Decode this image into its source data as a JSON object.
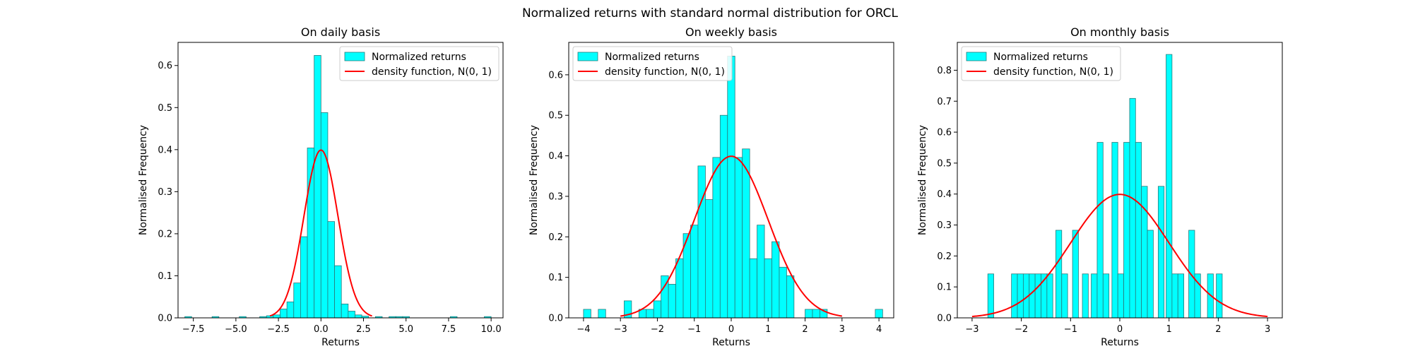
{
  "figure": {
    "suptitle": "Normalized returns with standard normal distribution for ORCL"
  },
  "colors": {
    "bar_fill": "#00ffff",
    "bar_edge": "#2a7a7a",
    "pdf_line": "#ff0000",
    "axis": "#000000",
    "background": "#ffffff"
  },
  "chart_data": [
    {
      "type": "bar",
      "title": "On daily basis",
      "xlabel": "Returns",
      "ylabel": "Normalised Frequency",
      "xlim": [
        -8.4,
        10.7
      ],
      "ylim": [
        0,
        0.655
      ],
      "xticks": [
        -7.5,
        -5.0,
        -2.5,
        0.0,
        2.5,
        5.0,
        7.5,
        10.0
      ],
      "xtick_labels": [
        "−7.5",
        "−5.0",
        "−2.5",
        "0.0",
        "2.5",
        "5.0",
        "7.5",
        "10.0"
      ],
      "yticks": [
        0.0,
        0.1,
        0.2,
        0.3,
        0.4,
        0.5,
        0.6
      ],
      "ytick_labels": [
        "0.0",
        "0.1",
        "0.2",
        "0.3",
        "0.4",
        "0.5",
        "0.6"
      ],
      "legend": {
        "placement": "upper-right",
        "entries": [
          "Normalized returns",
          "density function, N(0, 1)"
        ]
      },
      "grid": false,
      "series": [
        {
          "name": "Normalized returns",
          "kind": "histogram",
          "bins": [
            {
              "x0": -8.0,
              "x1": -7.6,
              "value": 0.003
            },
            {
              "x0": -6.4,
              "x1": -6.0,
              "value": 0.003
            },
            {
              "x0": -4.8,
              "x1": -4.4,
              "value": 0.003
            },
            {
              "x0": -3.6,
              "x1": -3.2,
              "value": 0.003
            },
            {
              "x0": -3.2,
              "x1": -2.8,
              "value": 0.005
            },
            {
              "x0": -2.8,
              "x1": -2.4,
              "value": 0.007
            },
            {
              "x0": -2.4,
              "x1": -2.0,
              "value": 0.021
            },
            {
              "x0": -2.0,
              "x1": -1.6,
              "value": 0.038
            },
            {
              "x0": -1.6,
              "x1": -1.2,
              "value": 0.083
            },
            {
              "x0": -1.2,
              "x1": -0.8,
              "value": 0.193
            },
            {
              "x0": -0.8,
              "x1": -0.4,
              "value": 0.404
            },
            {
              "x0": -0.4,
              "x1": 0.0,
              "value": 0.624
            },
            {
              "x0": 0.0,
              "x1": 0.4,
              "value": 0.488
            },
            {
              "x0": 0.4,
              "x1": 0.8,
              "value": 0.229
            },
            {
              "x0": 0.8,
              "x1": 1.2,
              "value": 0.124
            },
            {
              "x0": 1.2,
              "x1": 1.6,
              "value": 0.033
            },
            {
              "x0": 1.6,
              "x1": 2.0,
              "value": 0.016
            },
            {
              "x0": 2.0,
              "x1": 2.4,
              "value": 0.007
            },
            {
              "x0": 2.4,
              "x1": 2.8,
              "value": 0.004
            },
            {
              "x0": 3.2,
              "x1": 3.6,
              "value": 0.003
            },
            {
              "x0": 4.0,
              "x1": 4.4,
              "value": 0.003
            },
            {
              "x0": 4.4,
              "x1": 4.8,
              "value": 0.003
            },
            {
              "x0": 4.8,
              "x1": 5.2,
              "value": 0.003
            },
            {
              "x0": 7.6,
              "x1": 8.0,
              "value": 0.003
            },
            {
              "x0": 9.6,
              "x1": 10.0,
              "value": 0.003
            }
          ]
        },
        {
          "name": "density function, N(0, 1)",
          "kind": "normal-pdf",
          "mean": 0,
          "std": 1,
          "x_range": [
            -3,
            3
          ]
        }
      ]
    },
    {
      "type": "bar",
      "title": "On weekly basis",
      "xlabel": "Returns",
      "ylabel": "Normalised Frequency",
      "xlim": [
        -4.4,
        4.4
      ],
      "ylim": [
        0,
        0.68
      ],
      "xticks": [
        -4,
        -3,
        -2,
        -1,
        0,
        1,
        2,
        3,
        4
      ],
      "xtick_labels": [
        "−4",
        "−3",
        "−2",
        "−1",
        "0",
        "1",
        "2",
        "3",
        "4"
      ],
      "yticks": [
        0.0,
        0.1,
        0.2,
        0.3,
        0.4,
        0.5,
        0.6
      ],
      "ytick_labels": [
        "0.0",
        "0.1",
        "0.2",
        "0.3",
        "0.4",
        "0.5",
        "0.6"
      ],
      "legend": {
        "placement": "upper-left",
        "entries": [
          "Normalized returns",
          "density function, N(0, 1)"
        ]
      },
      "grid": false,
      "series": [
        {
          "name": "Normalized returns",
          "kind": "histogram",
          "bins": [
            {
              "x0": -4.0,
              "x1": -3.8,
              "value": 0.021
            },
            {
              "x0": -3.6,
              "x1": -3.4,
              "value": 0.021
            },
            {
              "x0": -2.9,
              "x1": -2.7,
              "value": 0.042
            },
            {
              "x0": -2.7,
              "x1": -2.5,
              "value": 0.0
            },
            {
              "x0": -2.5,
              "x1": -2.3,
              "value": 0.021
            },
            {
              "x0": -2.3,
              "x1": -2.1,
              "value": 0.021
            },
            {
              "x0": -2.1,
              "x1": -1.9,
              "value": 0.042
            },
            {
              "x0": -1.9,
              "x1": -1.7,
              "value": 0.104
            },
            {
              "x0": -1.7,
              "x1": -1.5,
              "value": 0.083
            },
            {
              "x0": -1.5,
              "x1": -1.3,
              "value": 0.146
            },
            {
              "x0": -1.3,
              "x1": -1.1,
              "value": 0.208
            },
            {
              "x0": -1.1,
              "x1": -0.9,
              "value": 0.229
            },
            {
              "x0": -0.9,
              "x1": -0.7,
              "value": 0.375
            },
            {
              "x0": -0.7,
              "x1": -0.5,
              "value": 0.292
            },
            {
              "x0": -0.5,
              "x1": -0.3,
              "value": 0.396
            },
            {
              "x0": -0.3,
              "x1": -0.1,
              "value": 0.5
            },
            {
              "x0": -0.1,
              "x1": 0.1,
              "value": 0.646
            },
            {
              "x0": 0.1,
              "x1": 0.3,
              "value": 0.396
            },
            {
              "x0": 0.3,
              "x1": 0.5,
              "value": 0.417
            },
            {
              "x0": 0.5,
              "x1": 0.7,
              "value": 0.146
            },
            {
              "x0": 0.7,
              "x1": 0.9,
              "value": 0.229
            },
            {
              "x0": 0.9,
              "x1": 1.1,
              "value": 0.146
            },
            {
              "x0": 1.1,
              "x1": 1.3,
              "value": 0.188
            },
            {
              "x0": 1.3,
              "x1": 1.5,
              "value": 0.125
            },
            {
              "x0": 1.5,
              "x1": 1.7,
              "value": 0.104
            },
            {
              "x0": 2.0,
              "x1": 2.2,
              "value": 0.021
            },
            {
              "x0": 2.2,
              "x1": 2.4,
              "value": 0.021
            },
            {
              "x0": 2.4,
              "x1": 2.6,
              "value": 0.021
            },
            {
              "x0": 3.9,
              "x1": 4.1,
              "value": 0.021
            }
          ]
        },
        {
          "name": "density function, N(0, 1)",
          "kind": "normal-pdf",
          "mean": 0,
          "std": 1,
          "x_range": [
            -3,
            3
          ]
        }
      ]
    },
    {
      "type": "bar",
      "title": "On monthly basis",
      "xlabel": "Returns",
      "ylabel": "Normalised Frequency",
      "xlim": [
        -3.3,
        3.3
      ],
      "ylim": [
        0,
        0.89
      ],
      "xticks": [
        -3,
        -2,
        -1,
        0,
        1,
        2,
        3
      ],
      "xtick_labels": [
        "−3",
        "−2",
        "−1",
        "0",
        "1",
        "2",
        "3"
      ],
      "yticks": [
        0.0,
        0.1,
        0.2,
        0.3,
        0.4,
        0.5,
        0.6,
        0.7,
        0.8
      ],
      "ytick_labels": [
        "0.0",
        "0.1",
        "0.2",
        "0.3",
        "0.4",
        "0.5",
        "0.6",
        "0.7",
        "0.8"
      ],
      "legend": {
        "placement": "upper-left",
        "entries": [
          "Normalized returns",
          "density function, N(0, 1)"
        ]
      },
      "grid": false,
      "series": [
        {
          "name": "Normalized returns",
          "kind": "histogram",
          "bins": [
            {
              "x0": -2.68,
              "x1": -2.56,
              "value": 0.142
            },
            {
              "x0": -2.2,
              "x1": -2.08,
              "value": 0.142
            },
            {
              "x0": -2.08,
              "x1": -1.96,
              "value": 0.142
            },
            {
              "x0": -1.96,
              "x1": -1.84,
              "value": 0.142
            },
            {
              "x0": -1.84,
              "x1": -1.72,
              "value": 0.142
            },
            {
              "x0": -1.72,
              "x1": -1.6,
              "value": 0.142
            },
            {
              "x0": -1.6,
              "x1": -1.48,
              "value": 0.142
            },
            {
              "x0": -1.48,
              "x1": -1.36,
              "value": 0.142
            },
            {
              "x0": -1.3,
              "x1": -1.18,
              "value": 0.283
            },
            {
              "x0": -1.18,
              "x1": -1.06,
              "value": 0.142
            },
            {
              "x0": -0.96,
              "x1": -0.84,
              "value": 0.283
            },
            {
              "x0": -0.76,
              "x1": -0.64,
              "value": 0.142
            },
            {
              "x0": -0.58,
              "x1": -0.46,
              "value": 0.142
            },
            {
              "x0": -0.46,
              "x1": -0.34,
              "value": 0.567
            },
            {
              "x0": -0.34,
              "x1": -0.22,
              "value": 0.142
            },
            {
              "x0": -0.16,
              "x1": -0.04,
              "value": 0.567
            },
            {
              "x0": -0.04,
              "x1": 0.08,
              "value": 0.142
            },
            {
              "x0": 0.08,
              "x1": 0.2,
              "value": 0.567
            },
            {
              "x0": 0.2,
              "x1": 0.32,
              "value": 0.709
            },
            {
              "x0": 0.32,
              "x1": 0.44,
              "value": 0.567
            },
            {
              "x0": 0.44,
              "x1": 0.56,
              "value": 0.425
            },
            {
              "x0": 0.56,
              "x1": 0.68,
              "value": 0.283
            },
            {
              "x0": 0.78,
              "x1": 0.9,
              "value": 0.425
            },
            {
              "x0": 0.94,
              "x1": 1.06,
              "value": 0.851
            },
            {
              "x0": 1.06,
              "x1": 1.18,
              "value": 0.142
            },
            {
              "x0": 1.18,
              "x1": 1.3,
              "value": 0.142
            },
            {
              "x0": 1.4,
              "x1": 1.52,
              "value": 0.283
            },
            {
              "x0": 1.52,
              "x1": 1.64,
              "value": 0.142
            },
            {
              "x0": 1.78,
              "x1": 1.9,
              "value": 0.142
            },
            {
              "x0": 1.96,
              "x1": 2.08,
              "value": 0.142
            }
          ]
        },
        {
          "name": "density function, N(0, 1)",
          "kind": "normal-pdf",
          "mean": 0,
          "std": 1,
          "x_range": [
            -3,
            3
          ]
        }
      ]
    }
  ]
}
